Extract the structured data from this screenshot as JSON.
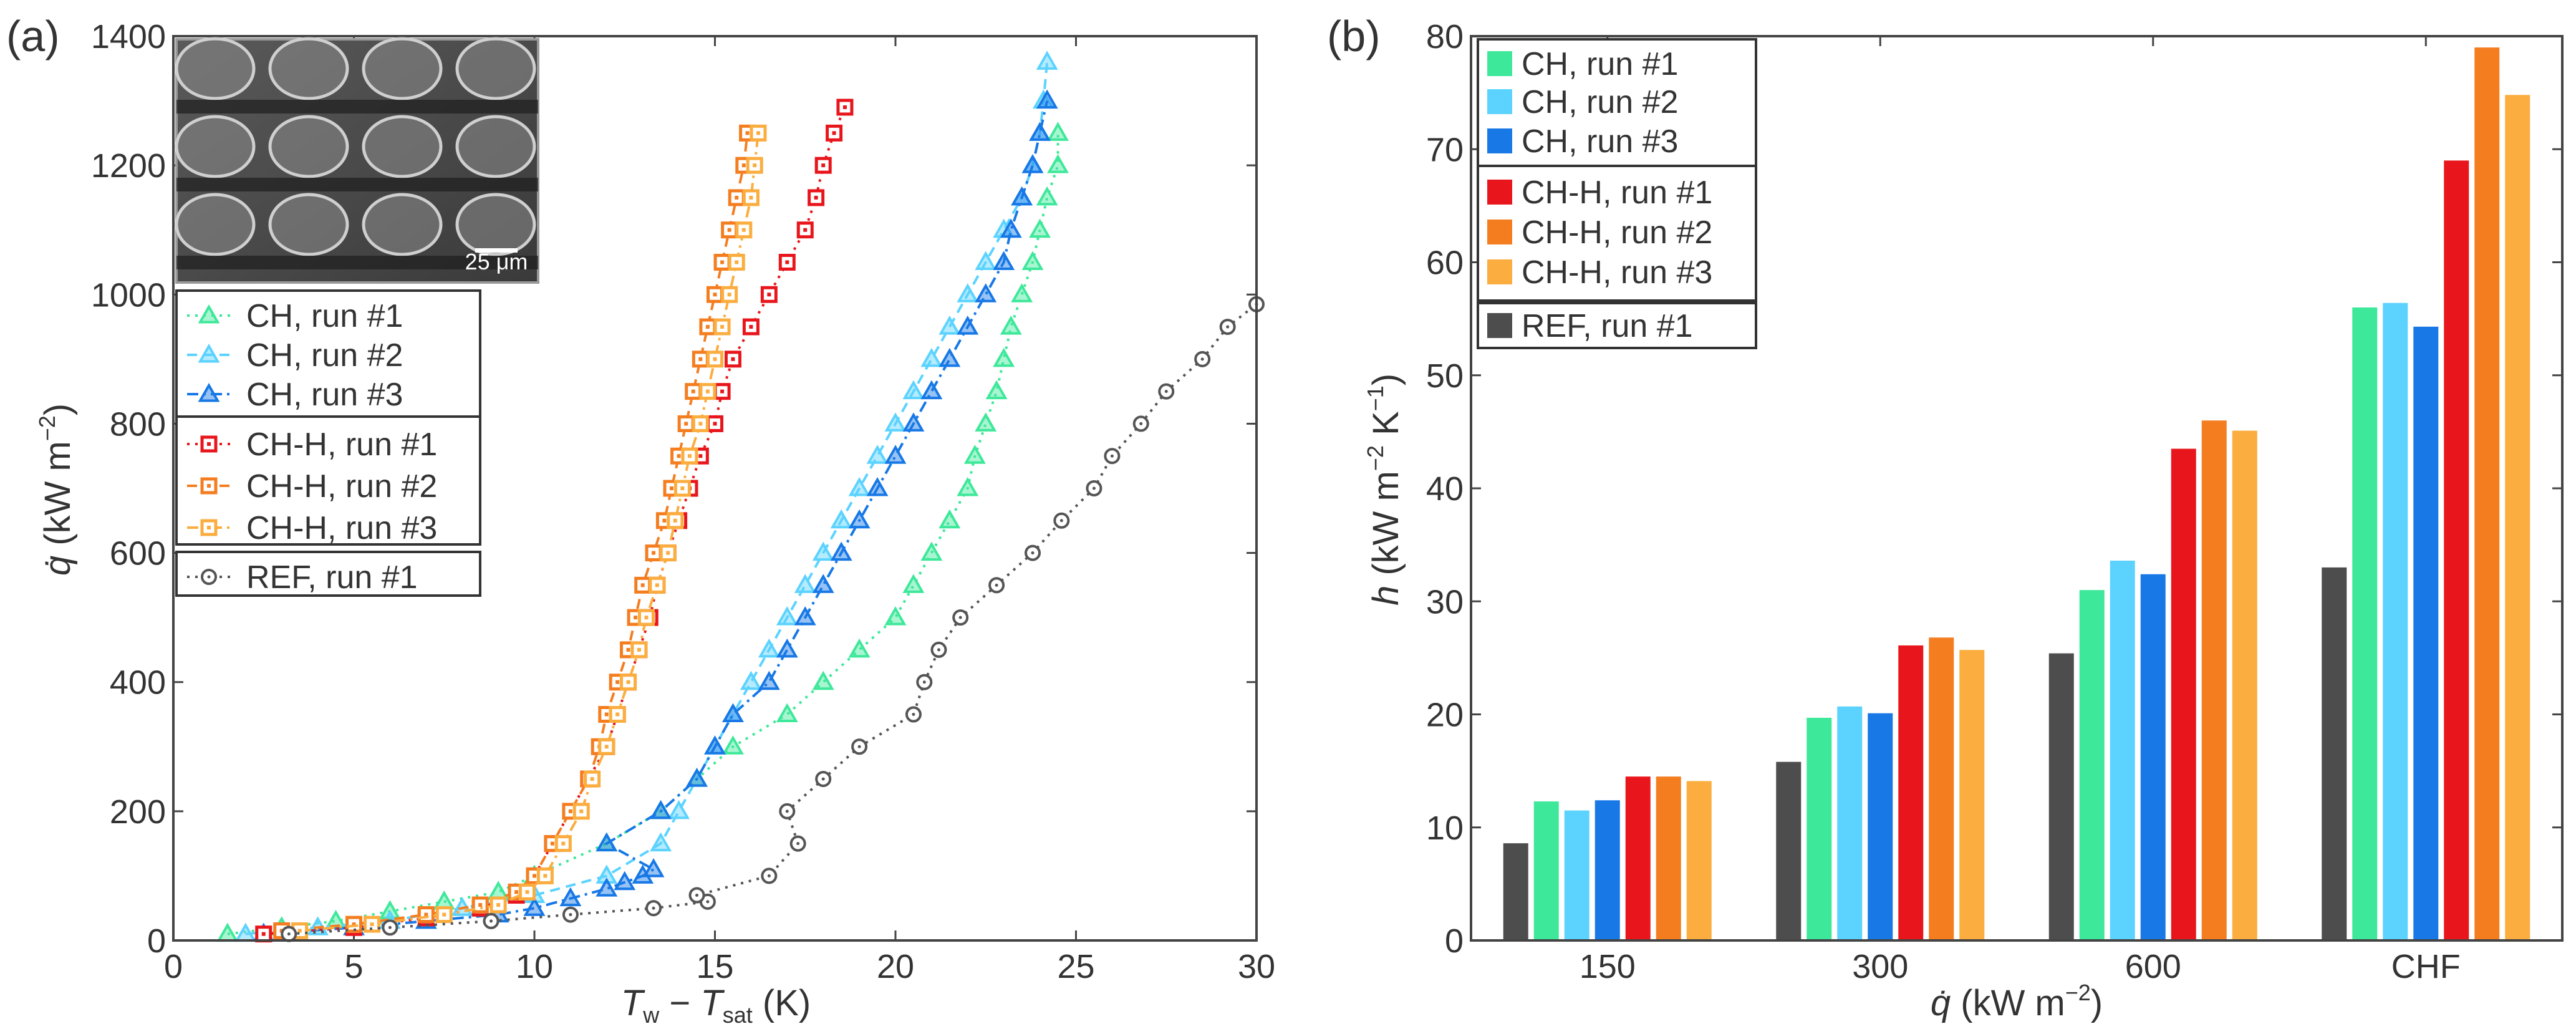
{
  "chart_data": [
    {
      "type": "line",
      "panel_label": "(a)",
      "xlabel": "T_w − T_sat (K)",
      "xlabel_parts": {
        "T": "T",
        "w": "w",
        "dash": " − ",
        "sat": "sat",
        "unit": " (K)"
      },
      "ylabel": "q̇ (kW m−2)",
      "ylabel_parts": {
        "q": "q̇",
        "unit": " (kW m",
        "exp": "−2",
        "close": ")"
      },
      "xlim": [
        0,
        30
      ],
      "ylim": [
        0,
        1400
      ],
      "xticks": [
        "0",
        "5",
        "10",
        "15",
        "20",
        "25",
        "30"
      ],
      "yticks": [
        "0",
        "200",
        "400",
        "600",
        "800",
        "1000",
        "1200",
        "1400"
      ],
      "legend_position": "left, below inset",
      "inset": {
        "type": "SEM micrograph",
        "scale_bar": "25 μm"
      },
      "series": [
        {
          "name": "CH, run #1",
          "color": "#3ee89a",
          "marker": "triangle",
          "dash": "dotted",
          "points": [
            [
              1.5,
              10
            ],
            [
              3,
              20
            ],
            [
              4.5,
              30
            ],
            [
              6,
              45
            ],
            [
              7.5,
              60
            ],
            [
              9,
              75
            ],
            [
              10,
              100
            ],
            [
              12,
              150
            ],
            [
              13.5,
              200
            ],
            [
              14.5,
              250
            ],
            [
              15.5,
              300
            ],
            [
              17,
              350
            ],
            [
              18,
              400
            ],
            [
              19,
              450
            ],
            [
              20,
              500
            ],
            [
              20.5,
              550
            ],
            [
              21,
              600
            ],
            [
              21.5,
              650
            ],
            [
              22,
              700
            ],
            [
              22.2,
              750
            ],
            [
              22.5,
              800
            ],
            [
              22.8,
              850
            ],
            [
              23,
              900
            ],
            [
              23.2,
              950
            ],
            [
              23.5,
              1000
            ],
            [
              23.8,
              1050
            ],
            [
              24,
              1100
            ],
            [
              24.2,
              1150
            ],
            [
              24.5,
              1200
            ],
            [
              24.5,
              1250
            ]
          ]
        },
        {
          "name": "CH, run #2",
          "color": "#5cd3ff",
          "marker": "triangle",
          "dash": "dashed",
          "points": [
            [
              2,
              10
            ],
            [
              4,
              20
            ],
            [
              6,
              30
            ],
            [
              8,
              50
            ],
            [
              10,
              70
            ],
            [
              12,
              100
            ],
            [
              13.5,
              150
            ],
            [
              14,
              200
            ],
            [
              15,
              300
            ],
            [
              15.5,
              350
            ],
            [
              16,
              400
            ],
            [
              16.5,
              450
            ],
            [
              17,
              500
            ],
            [
              17.5,
              550
            ],
            [
              18,
              600
            ],
            [
              18.5,
              650
            ],
            [
              19,
              700
            ],
            [
              19.5,
              750
            ],
            [
              20,
              800
            ],
            [
              20.5,
              850
            ],
            [
              21,
              900
            ],
            [
              21.5,
              950
            ],
            [
              22,
              1000
            ],
            [
              22.5,
              1050
            ],
            [
              23,
              1100
            ],
            [
              23.5,
              1150
            ],
            [
              23.8,
              1200
            ],
            [
              24,
              1250
            ],
            [
              24.1,
              1300
            ],
            [
              24.2,
              1360
            ]
          ]
        },
        {
          "name": "CH, run #3",
          "color": "#1778e6",
          "marker": "triangle",
          "dash": "dashdot",
          "points": [
            [
              2.5,
              10
            ],
            [
              5,
              20
            ],
            [
              7,
              30
            ],
            [
              9,
              40
            ],
            [
              10,
              50
            ],
            [
              11,
              65
            ],
            [
              12,
              80
            ],
            [
              12.5,
              90
            ],
            [
              13,
              100
            ],
            [
              13.3,
              110
            ],
            [
              12,
              150
            ],
            [
              13.5,
              200
            ],
            [
              14.5,
              250
            ],
            [
              15,
              300
            ],
            [
              15.5,
              350
            ],
            [
              16.5,
              400
            ],
            [
              17,
              450
            ],
            [
              17.5,
              500
            ],
            [
              18,
              550
            ],
            [
              18.5,
              600
            ],
            [
              19,
              650
            ],
            [
              19.5,
              700
            ],
            [
              20,
              750
            ],
            [
              20.5,
              800
            ],
            [
              21,
              850
            ],
            [
              21.5,
              900
            ],
            [
              22,
              950
            ],
            [
              22.5,
              1000
            ],
            [
              23,
              1050
            ],
            [
              23.2,
              1100
            ],
            [
              23.5,
              1150
            ],
            [
              23.8,
              1200
            ],
            [
              24,
              1250
            ],
            [
              24.2,
              1300
            ]
          ]
        },
        {
          "name": "CH-H, run #1",
          "color": "#e8161c",
          "marker": "square",
          "dash": "dotted",
          "points": [
            [
              2.5,
              10
            ],
            [
              5,
              20
            ],
            [
              7,
              35
            ],
            [
              8.5,
              50
            ],
            [
              9.5,
              70
            ],
            [
              10,
              100
            ],
            [
              10.5,
              150
            ],
            [
              11.5,
              250
            ],
            [
              12,
              300
            ],
            [
              12.3,
              350
            ],
            [
              12.6,
              400
            ],
            [
              12.9,
              450
            ],
            [
              13.2,
              500
            ],
            [
              13.4,
              550
            ],
            [
              13.7,
              600
            ],
            [
              14,
              650
            ],
            [
              14.3,
              700
            ],
            [
              14.6,
              750
            ],
            [
              15,
              800
            ],
            [
              15.2,
              850
            ],
            [
              15.5,
              900
            ],
            [
              16,
              950
            ],
            [
              16.5,
              1000
            ],
            [
              17,
              1050
            ],
            [
              17.5,
              1100
            ],
            [
              17.8,
              1150
            ],
            [
              18,
              1200
            ],
            [
              18.3,
              1250
            ],
            [
              18.6,
              1290
            ]
          ]
        },
        {
          "name": "CH-H, run #2",
          "color": "#f47d20",
          "marker": "square",
          "dash": "dashed",
          "points": [
            [
              3,
              15
            ],
            [
              5,
              25
            ],
            [
              7,
              40
            ],
            [
              8.5,
              55
            ],
            [
              9.5,
              75
            ],
            [
              10,
              100
            ],
            [
              10.5,
              150
            ],
            [
              11,
              200
            ],
            [
              11.5,
              250
            ],
            [
              11.8,
              300
            ],
            [
              12,
              350
            ],
            [
              12.3,
              400
            ],
            [
              12.6,
              450
            ],
            [
              12.8,
              500
            ],
            [
              13,
              550
            ],
            [
              13.3,
              600
            ],
            [
              13.6,
              650
            ],
            [
              13.8,
              700
            ],
            [
              14,
              750
            ],
            [
              14.2,
              800
            ],
            [
              14.4,
              850
            ],
            [
              14.6,
              900
            ],
            [
              14.8,
              950
            ],
            [
              15,
              1000
            ],
            [
              15.2,
              1050
            ],
            [
              15.4,
              1100
            ],
            [
              15.6,
              1150
            ],
            [
              15.8,
              1200
            ],
            [
              15.9,
              1250
            ]
          ]
        },
        {
          "name": "CH-H, run #3",
          "color": "#fbad3f",
          "marker": "square",
          "dash": "dashdot",
          "points": [
            [
              3.5,
              15
            ],
            [
              5.5,
              25
            ],
            [
              7.5,
              40
            ],
            [
              9,
              55
            ],
            [
              9.8,
              75
            ],
            [
              10.3,
              100
            ],
            [
              10.8,
              150
            ],
            [
              11.3,
              200
            ],
            [
              11.6,
              250
            ],
            [
              12,
              300
            ],
            [
              12.3,
              350
            ],
            [
              12.6,
              400
            ],
            [
              12.9,
              450
            ],
            [
              13.1,
              500
            ],
            [
              13.4,
              550
            ],
            [
              13.7,
              600
            ],
            [
              13.9,
              650
            ],
            [
              14.1,
              700
            ],
            [
              14.3,
              750
            ],
            [
              14.6,
              800
            ],
            [
              14.8,
              850
            ],
            [
              15,
              900
            ],
            [
              15.2,
              950
            ],
            [
              15.4,
              1000
            ],
            [
              15.6,
              1050
            ],
            [
              15.8,
              1100
            ],
            [
              16,
              1150
            ],
            [
              16.1,
              1200
            ],
            [
              16.2,
              1250
            ]
          ]
        },
        {
          "name": "REF, run #1",
          "color": "#555555",
          "marker": "circle",
          "dash": "dotted",
          "points": [
            [
              3.2,
              10
            ],
            [
              6,
              20
            ],
            [
              8.8,
              30
            ],
            [
              11,
              40
            ],
            [
              13.3,
              50
            ],
            [
              14.8,
              60
            ],
            [
              14.5,
              70
            ],
            [
              16.5,
              100
            ],
            [
              17.3,
              150
            ],
            [
              17,
              200
            ],
            [
              18,
              250
            ],
            [
              19,
              300
            ],
            [
              20.5,
              350
            ],
            [
              20.8,
              400
            ],
            [
              21.2,
              450
            ],
            [
              21.8,
              500
            ],
            [
              22.8,
              550
            ],
            [
              23.8,
              600
            ],
            [
              24.6,
              650
            ],
            [
              25.5,
              700
            ],
            [
              26,
              750
            ],
            [
              26.8,
              800
            ],
            [
              27.5,
              850
            ],
            [
              28.5,
              900
            ],
            [
              29.2,
              950
            ],
            [
              30,
              985
            ]
          ]
        }
      ]
    },
    {
      "type": "bar",
      "panel_label": "(b)",
      "xlabel": "q̇ (kW m−2)",
      "xlabel_parts": {
        "q": "q̇",
        "unit": " (kW m",
        "exp": "−2",
        "close": ")"
      },
      "ylabel": "h (kW m−2 K−1)",
      "ylabel_parts": {
        "h": "h",
        "unit1": " (kW m",
        "exp1": "−2",
        "unit2": " K",
        "exp2": "−1",
        "close": ")"
      },
      "ylim": [
        0,
        80
      ],
      "yticks": [
        "0",
        "10",
        "20",
        "30",
        "40",
        "50",
        "60",
        "70",
        "80"
      ],
      "categories": [
        "150",
        "300",
        "600",
        "CHF"
      ],
      "legend_position": "top-left",
      "series": [
        {
          "name": "REF, run #1",
          "color": "#4d4d4d",
          "values": [
            8.6,
            15.8,
            25.4,
            33
          ]
        },
        {
          "name": "CH, run #1",
          "color": "#3ee89a",
          "values": [
            12.3,
            19.7,
            31,
            56
          ]
        },
        {
          "name": "CH, run #2",
          "color": "#5cd3ff",
          "values": [
            11.5,
            20.7,
            33.6,
            56.4
          ]
        },
        {
          "name": "CH, run #3",
          "color": "#1778e6",
          "values": [
            12.4,
            20.1,
            32.4,
            54.3
          ]
        },
        {
          "name": "CH-H, run #1",
          "color": "#e8161c",
          "values": [
            14.5,
            26.1,
            43.5,
            69
          ]
        },
        {
          "name": "CH-H, run #2",
          "color": "#f47d20",
          "values": [
            14.5,
            26.8,
            46,
            79
          ]
        },
        {
          "name": "CH-H, run #3",
          "color": "#fbad3f",
          "values": [
            14.1,
            25.7,
            45.1,
            74.8
          ]
        }
      ],
      "legend_order": [
        "CH, run #1",
        "CH, run #2",
        "CH, run #3",
        "CH-H, run #1",
        "CH-H, run #2",
        "CH-H, run #3",
        "REF, run #1"
      ]
    }
  ]
}
